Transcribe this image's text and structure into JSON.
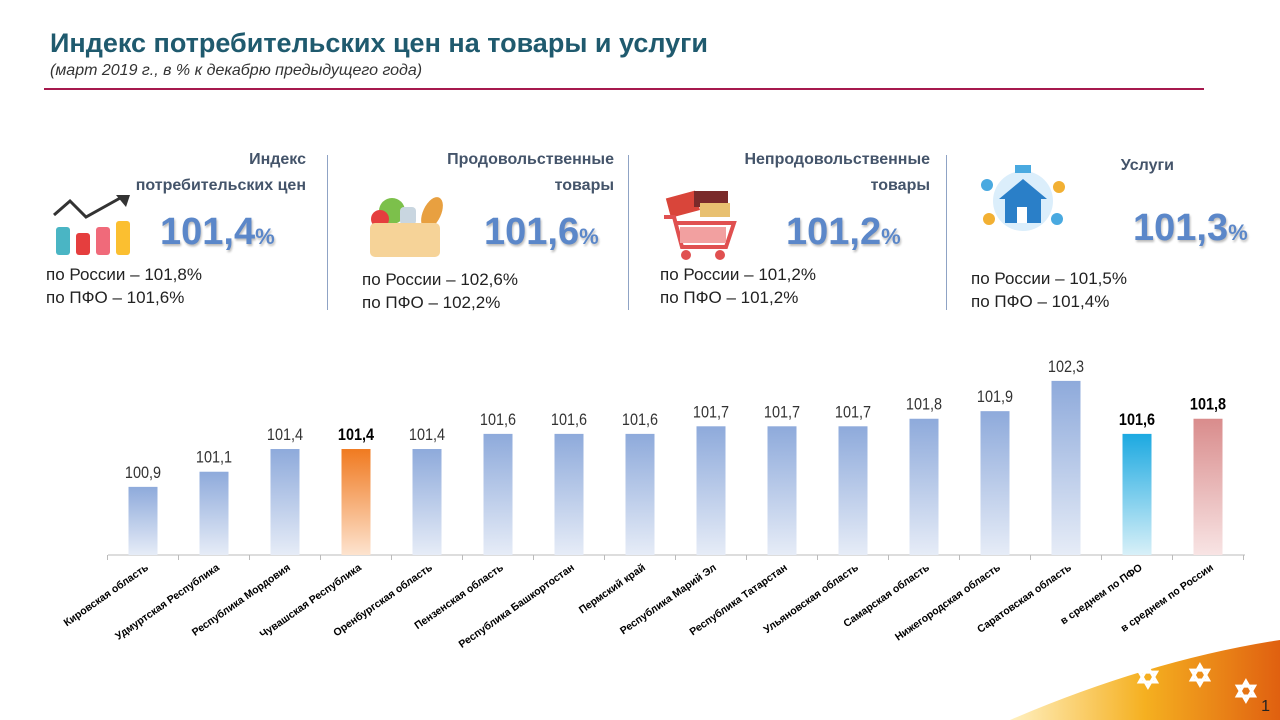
{
  "header": {
    "title": "Индекс потребительских цен на товары и услуги",
    "subtitle": "(март 2019 г., в % к декабрю предыдущего года)"
  },
  "cards": [
    {
      "label1": "Индекс",
      "label2": "потребительских цен",
      "value": "101,4",
      "unit": "%",
      "russia": "по России – 101,8%",
      "pfo": "по ПФО – 101,6%",
      "icon": "chart-growth-icon"
    },
    {
      "label1": "Продовольственные",
      "label2": "товары",
      "value": "101,6",
      "unit": "%",
      "russia": "по России – 102,6%",
      "pfo": "по ПФО – 102,2%",
      "icon": "grocery-basket-icon"
    },
    {
      "label1": "Непродовольственные",
      "label2": "товары",
      "value": "101,2",
      "unit": "%",
      "russia": "по России – 101,2%",
      "pfo": "по ПФО – 101,2%",
      "icon": "shopping-cart-icon"
    },
    {
      "label1": "Услуги",
      "label2": "",
      "value": "101,3",
      "unit": "%",
      "russia": "по России – 101,5%",
      "pfo": "по ПФО – 101,4%",
      "icon": "household-services-icon"
    }
  ],
  "page_number": "1",
  "colors": {
    "bar": "#8eaadb",
    "highlight": "#f07a20",
    "pfo": "#1ca9e1",
    "russia": "#d98c8c",
    "title": "#1f5a6e",
    "accent_rule": "#a6194d"
  },
  "chart_data": {
    "type": "bar",
    "categories": [
      "Кировская область",
      "Удмуртская Республика",
      "Республика Мордовия",
      "Чувашская Республика",
      "Оренбургская область",
      "Пензенская область",
      "Республика Башкортостан",
      "Пермский край",
      "Республика Марий Эл",
      "Республика Татарстан",
      "Ульяновская область",
      "Самарская область",
      "Нижегородская область",
      "Саратовская область",
      "в среднем по ПФО",
      "в среднем по России"
    ],
    "values": [
      100.9,
      101.1,
      101.4,
      101.4,
      101.4,
      101.6,
      101.6,
      101.6,
      101.7,
      101.7,
      101.7,
      101.8,
      101.9,
      102.3,
      101.6,
      101.8
    ],
    "data_labels": [
      "100,9",
      "101,1",
      "101,4",
      "101,4",
      "101,4",
      "101,6",
      "101,6",
      "101,6",
      "101,7",
      "101,7",
      "101,7",
      "101,8",
      "101,9",
      "102,3",
      "101,6",
      "101,8"
    ],
    "highlighted": [
      "Чувашская Республика",
      "в среднем по ПФО",
      "в среднем по России"
    ],
    "ylim": [
      100,
      102.5
    ],
    "grid": false,
    "xlabel": "",
    "ylabel": ""
  }
}
